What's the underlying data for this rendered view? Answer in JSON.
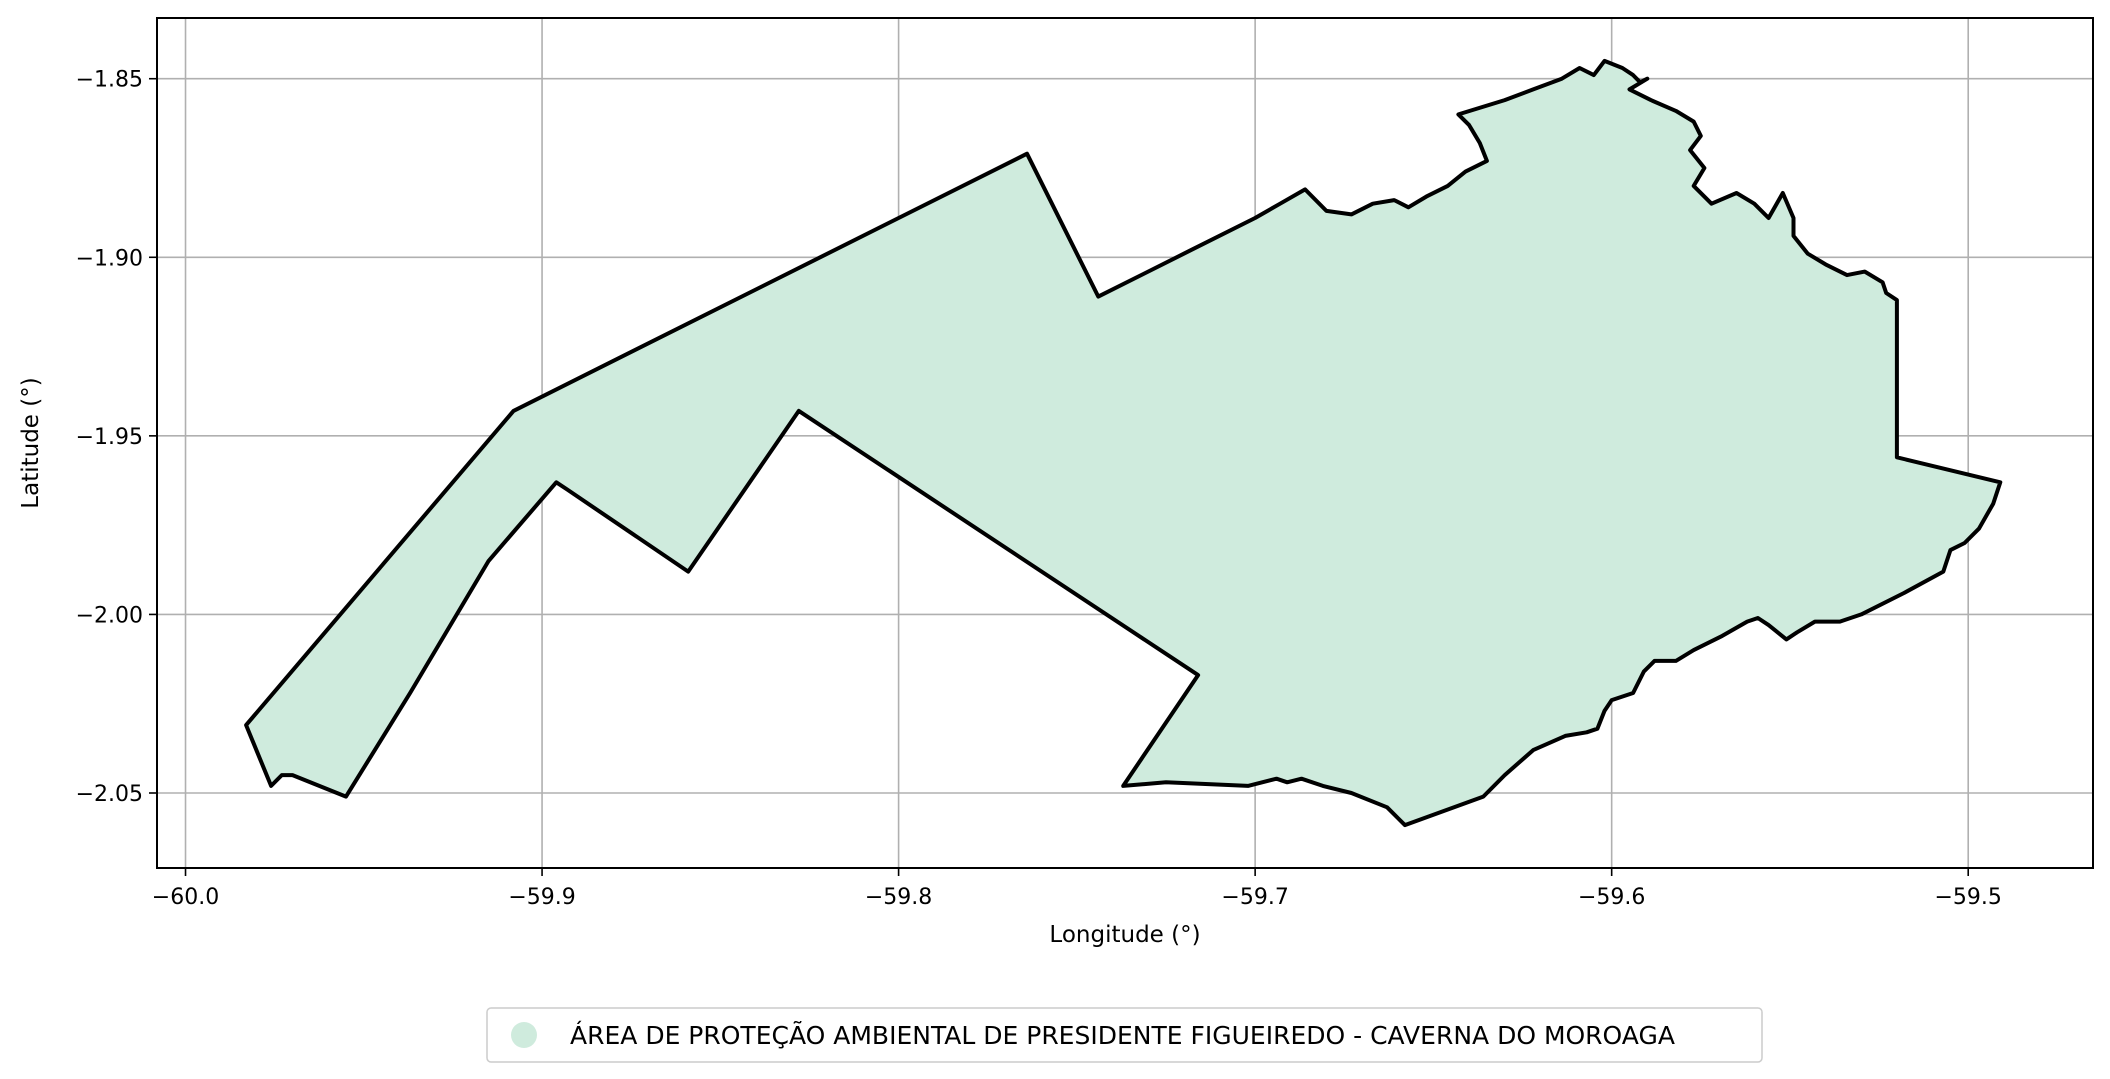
{
  "chart_data": {
    "type": "map",
    "title": "",
    "xlabel": "Longitude (°)",
    "ylabel": "Latitude (°)",
    "xlim": [
      -60.008,
      -59.465
    ],
    "ylim": [
      -2.071,
      -1.833
    ],
    "xticks": [
      -60.0,
      -59.9,
      -59.8,
      -59.7,
      -59.6,
      -59.5
    ],
    "xtick_labels": [
      "−60.0",
      "−59.9",
      "−59.8",
      "−59.7",
      "−59.6",
      "−59.5"
    ],
    "yticks": [
      -1.85,
      -1.9,
      -1.95,
      -2.0,
      -2.05
    ],
    "ytick_labels": [
      "−1.85",
      "−1.90",
      "−1.95",
      "−2.00",
      "−2.05"
    ],
    "grid": true,
    "legend": {
      "placement": "bottom-center",
      "entries": [
        {
          "label": "ÁREA DE PROTEÇÃO AMBIENTAL DE PRESIDENTE FIGUEIREDO - CAVERNA DO MOROAGA",
          "color": "#cfebdd"
        }
      ]
    },
    "regions": [
      {
        "name": "ÁREA DE PROTEÇÃO AMBIENTAL DE PRESIDENTE FIGUEIREDO - CAVERNA DO MOROAGA",
        "fill": "#cfebdd",
        "stroke": "#000000",
        "boundary": [
          [
            -59.983,
            -2.031
          ],
          [
            -59.908,
            -1.943
          ],
          [
            -59.764,
            -1.871
          ],
          [
            -59.744,
            -1.911
          ],
          [
            -59.718,
            -1.898
          ],
          [
            -59.7,
            -1.889
          ],
          [
            -59.693,
            -1.885
          ],
          [
            -59.686,
            -1.881
          ],
          [
            -59.68,
            -1.887
          ],
          [
            -59.673,
            -1.888
          ],
          [
            -59.667,
            -1.885
          ],
          [
            -59.661,
            -1.884
          ],
          [
            -59.657,
            -1.886
          ],
          [
            -59.652,
            -1.883
          ],
          [
            -59.646,
            -1.88
          ],
          [
            -59.641,
            -1.876
          ],
          [
            -59.635,
            -1.873
          ],
          [
            -59.637,
            -1.868
          ],
          [
            -59.64,
            -1.863
          ],
          [
            -59.643,
            -1.86
          ],
          [
            -59.63,
            -1.856
          ],
          [
            -59.622,
            -1.853
          ],
          [
            -59.614,
            -1.85
          ],
          [
            -59.609,
            -1.847
          ],
          [
            -59.605,
            -1.849
          ],
          [
            -59.602,
            -1.845
          ],
          [
            -59.597,
            -1.847
          ],
          [
            -59.594,
            -1.849
          ],
          [
            -59.592,
            -1.851
          ],
          [
            -59.59,
            -1.85
          ],
          [
            -59.595,
            -1.853
          ],
          [
            -59.589,
            -1.856
          ],
          [
            -59.582,
            -1.859
          ],
          [
            -59.577,
            -1.862
          ],
          [
            -59.575,
            -1.866
          ],
          [
            -59.578,
            -1.87
          ],
          [
            -59.574,
            -1.875
          ],
          [
            -59.577,
            -1.88
          ],
          [
            -59.572,
            -1.885
          ],
          [
            -59.565,
            -1.882
          ],
          [
            -59.56,
            -1.885
          ],
          [
            -59.556,
            -1.889
          ],
          [
            -59.552,
            -1.882
          ],
          [
            -59.549,
            -1.889
          ],
          [
            -59.549,
            -1.894
          ],
          [
            -59.545,
            -1.899
          ],
          [
            -59.54,
            -1.902
          ],
          [
            -59.534,
            -1.905
          ],
          [
            -59.529,
            -1.904
          ],
          [
            -59.524,
            -1.907
          ],
          [
            -59.523,
            -1.91
          ],
          [
            -59.52,
            -1.912
          ],
          [
            -59.52,
            -1.956
          ],
          [
            -59.491,
            -1.963
          ],
          [
            -59.493,
            -1.969
          ],
          [
            -59.497,
            -1.976
          ],
          [
            -59.501,
            -1.98
          ],
          [
            -59.505,
            -1.982
          ],
          [
            -59.507,
            -1.988
          ],
          [
            -59.518,
            -1.994
          ],
          [
            -59.53,
            -2.0
          ],
          [
            -59.536,
            -2.002
          ],
          [
            -59.543,
            -2.002
          ],
          [
            -59.548,
            -2.005
          ],
          [
            -59.551,
            -2.007
          ],
          [
            -59.556,
            -2.003
          ],
          [
            -59.559,
            -2.001
          ],
          [
            -59.562,
            -2.002
          ],
          [
            -59.569,
            -2.006
          ],
          [
            -59.577,
            -2.01
          ],
          [
            -59.582,
            -2.013
          ],
          [
            -59.588,
            -2.013
          ],
          [
            -59.591,
            -2.016
          ],
          [
            -59.594,
            -2.022
          ],
          [
            -59.6,
            -2.024
          ],
          [
            -59.602,
            -2.027
          ],
          [
            -59.604,
            -2.032
          ],
          [
            -59.607,
            -2.033
          ],
          [
            -59.613,
            -2.034
          ],
          [
            -59.622,
            -2.038
          ],
          [
            -59.63,
            -2.045
          ],
          [
            -59.636,
            -2.051
          ],
          [
            -59.658,
            -2.059
          ],
          [
            -59.66,
            -2.057
          ],
          [
            -59.663,
            -2.054
          ],
          [
            -59.673,
            -2.05
          ],
          [
            -59.681,
            -2.048
          ],
          [
            -59.687,
            -2.046
          ],
          [
            -59.691,
            -2.047
          ],
          [
            -59.694,
            -2.046
          ],
          [
            -59.702,
            -2.048
          ],
          [
            -59.725,
            -2.047
          ],
          [
            -59.737,
            -2.048
          ],
          [
            -59.716,
            -2.017
          ],
          [
            -59.828,
            -1.943
          ],
          [
            -59.859,
            -1.988
          ],
          [
            -59.893,
            -1.965
          ],
          [
            -59.896,
            -1.963
          ],
          [
            -59.915,
            -1.985
          ],
          [
            -59.937,
            -2.022
          ],
          [
            -59.955,
            -2.051
          ],
          [
            -59.97,
            -2.045
          ],
          [
            -59.973,
            -2.045
          ],
          [
            -59.976,
            -2.048
          ]
        ]
      }
    ]
  }
}
